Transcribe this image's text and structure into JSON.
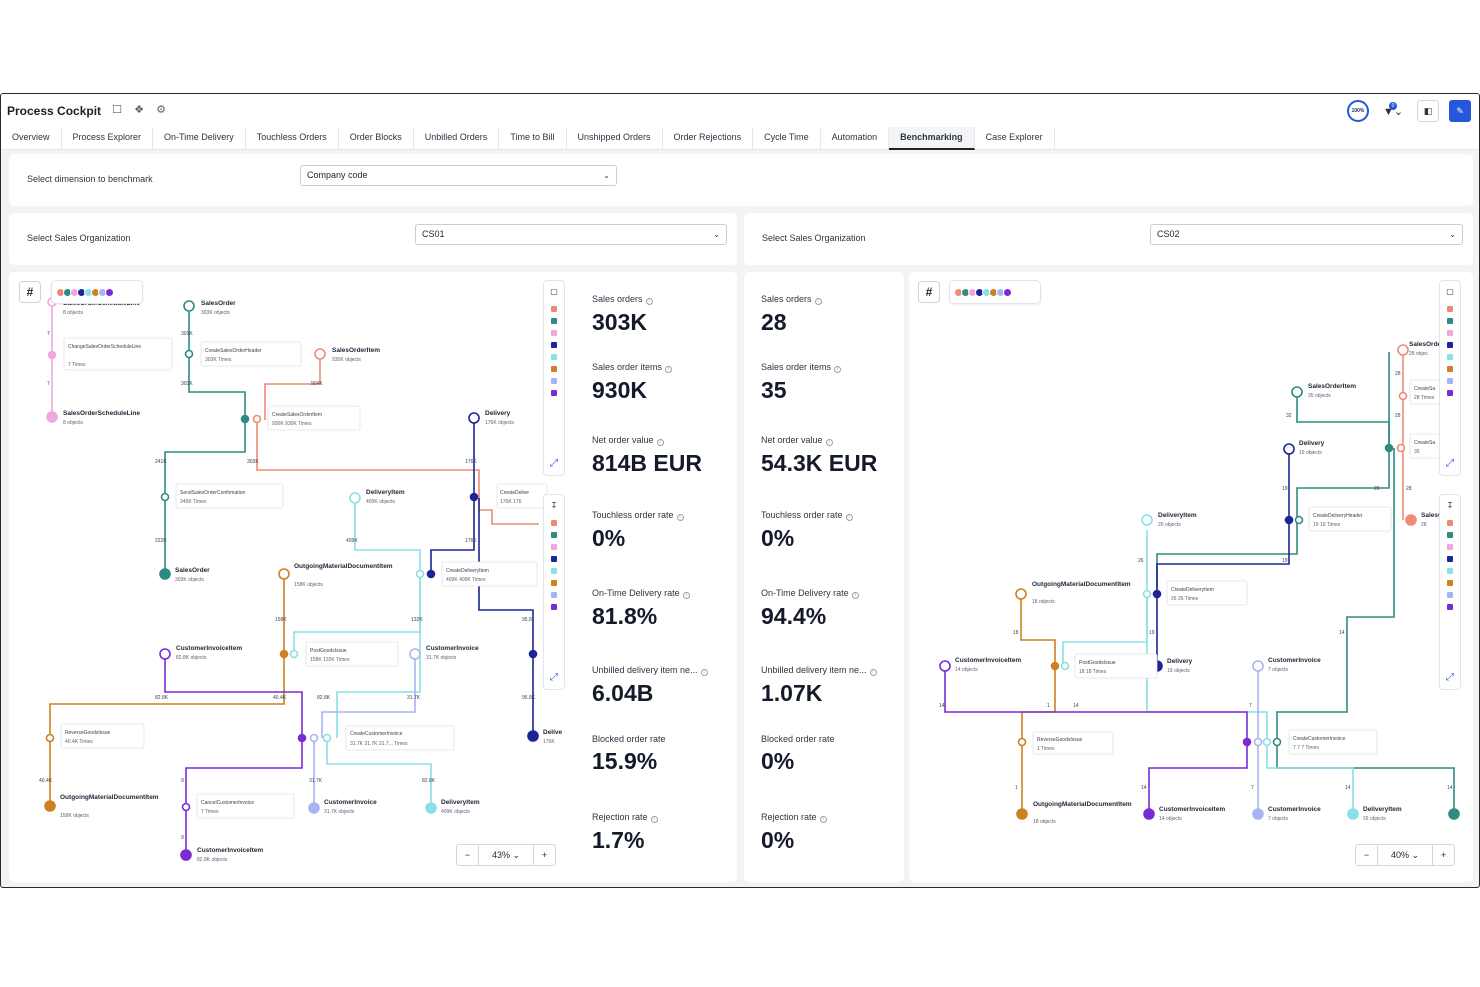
{
  "app": {
    "title": "Process Cockpit",
    "tabs": [
      "Overview",
      "Process Explorer",
      "On-Time Delivery",
      "Touchless Orders",
      "Order Blocks",
      "Unbilled Orders",
      "Time to Bill",
      "Unshipped Orders",
      "Order Rejections",
      "Cycle Time",
      "Automation",
      "Benchmarking",
      "Case Explorer"
    ],
    "active_tab": "Benchmarking",
    "completeness_badge": "100%",
    "filter_count": "0"
  },
  "dimension": {
    "label": "Select dimension to benchmark",
    "value": "Company code"
  },
  "left": {
    "org_label": "Select Sales Organization",
    "org_value": "CS01",
    "zoom": "43%",
    "kpis": [
      {
        "label": "Sales orders",
        "value": "303K"
      },
      {
        "label": "Sales order items",
        "value": "930K"
      },
      {
        "label": "Net order value",
        "value": "814B EUR"
      },
      {
        "label": "Touchless order rate",
        "value": "0%"
      },
      {
        "label": "On-Time Delivery rate",
        "value": "81.8%"
      },
      {
        "label": "Unbilled delivery item ne...",
        "value": "6.04B"
      },
      {
        "label": "Blocked order rate",
        "value": "15.9%"
      },
      {
        "label": "Rejection rate",
        "value": "1.7%"
      }
    ],
    "graph": {
      "nodes": [
        {
          "name": "SalesOrderScheduleLine",
          "sub": "8 objects"
        },
        {
          "name": "SalesOrder",
          "sub": "303K objects"
        },
        {
          "name": "ChangeSalesOrderScheduleLine",
          "sub": "7 Times"
        },
        {
          "name": "CreateSalesOrderHeader",
          "sub": "303K Times"
        },
        {
          "name": "SalesOrderItem",
          "sub": "930K objects"
        },
        {
          "name": "SalesOrderScheduleLine",
          "sub": "8 objects"
        },
        {
          "name": "CreateSalesOrderItem",
          "sub": "930K   930K Times"
        },
        {
          "name": "Delivery",
          "sub": "176K objects"
        },
        {
          "name": "SendSalesOrderConfirmation",
          "sub": "245K Times"
        },
        {
          "name": "DeliveryItem",
          "sub": "409K objects"
        },
        {
          "name": "CreateDelive",
          "sub": "176K  176"
        },
        {
          "name": "SalesOrder",
          "sub": "303K objects"
        },
        {
          "name": "OutgoingMaterialDocumentItem",
          "sub": "158K objects"
        },
        {
          "name": "CreateDeliveryItem",
          "sub": "409K   409K Times"
        },
        {
          "name": "CustomerInvoiceItem",
          "sub": "82.8K objects"
        },
        {
          "name": "PostGoodsIssue",
          "sub": "158K   132K Times"
        },
        {
          "name": "CustomerInvoice",
          "sub": "31.7K objects"
        },
        {
          "name": "ReverseGoodsIssue",
          "sub": "40.4K Times"
        },
        {
          "name": "CreateCustomerInvoice",
          "sub": "31.7K  31.7K  31.7...  Times"
        },
        {
          "name": "Delive",
          "sub": "176K"
        },
        {
          "name": "OutgoingMaterialDocumentItem",
          "sub": "158K objects"
        },
        {
          "name": "CancelCustomerInvoice",
          "sub": "7 Times"
        },
        {
          "name": "CustomerInvoice",
          "sub": "31.7K objects"
        },
        {
          "name": "DeliveryItem",
          "sub": "409K objects"
        },
        {
          "name": "CustomerInvoiceItem",
          "sub": "82.8K objects"
        }
      ],
      "edges": [
        "7",
        "7",
        "301K",
        "303K",
        "904K",
        "241K",
        "303K",
        "176K",
        "222K",
        "409K",
        "176K",
        "158K",
        "132K",
        "95.8",
        "82.8K",
        "40.4K",
        "82.8K",
        "31.7K",
        "95.8K",
        "40.4K",
        "9",
        "31.7K",
        "82.8K",
        "9"
      ]
    }
  },
  "right": {
    "org_label": "Select Sales Organization",
    "org_value": "CS02",
    "zoom": "40%",
    "kpis": [
      {
        "label": "Sales orders",
        "value": "28"
      },
      {
        "label": "Sales order items",
        "value": "35"
      },
      {
        "label": "Net order value",
        "value": "54.3K EUR"
      },
      {
        "label": "Touchless order rate",
        "value": "0%"
      },
      {
        "label": "On-Time Delivery rate",
        "value": "94.4%"
      },
      {
        "label": "Unbilled delivery item ne...",
        "value": "1.07K"
      },
      {
        "label": "Blocked order rate",
        "value": "0%"
      },
      {
        "label": "Rejection rate",
        "value": "0%"
      }
    ],
    "graph": {
      "nodes": [
        {
          "name": "SalesOrde",
          "sub": "28 objec"
        },
        {
          "name": "SalesOrderItem",
          "sub": "35 objects"
        },
        {
          "name": "CreateSa",
          "sub": "28 Times"
        },
        {
          "name": "Delivery",
          "sub": "19 objects"
        },
        {
          "name": "CreateSa",
          "sub": "35"
        },
        {
          "name": "CreateDeliveryHeader",
          "sub": "19   19 Times"
        },
        {
          "name": "SalesO",
          "sub": "28"
        },
        {
          "name": "DeliveryItem",
          "sub": "26 objects"
        },
        {
          "name": "OutgoingMaterialDocumentItem",
          "sub": "18 objects"
        },
        {
          "name": "CreateDeliveryItem",
          "sub": "26   26 Times"
        },
        {
          "name": "CustomerInvoiceItem",
          "sub": "14 objects"
        },
        {
          "name": "PostGoodsIssue",
          "sub": "18   18 Times"
        },
        {
          "name": "Delivery",
          "sub": "19 objects"
        },
        {
          "name": "CustomerInvoice",
          "sub": "7 objects"
        },
        {
          "name": "ReverseGoodsIssue",
          "sub": "1 Times"
        },
        {
          "name": "CreateCustomerInvoice",
          "sub": "7   7   7 Times"
        },
        {
          "name": "OutgoingMaterialDocumentItem",
          "sub": "18 objects"
        },
        {
          "name": "CustomerInvoiceItem",
          "sub": "14 objects"
        },
        {
          "name": "CustomerInvoice",
          "sub": "7 objects"
        },
        {
          "name": "DeliveryItem",
          "sub": "26 objects"
        }
      ],
      "edges": [
        "28",
        "32",
        "28",
        "19",
        "26",
        "28",
        "19",
        "26",
        "18",
        "19",
        "14",
        "14",
        "1",
        "14",
        "7",
        "1",
        "14",
        "7",
        "14",
        "14"
      ]
    }
  },
  "colors": {
    "teal": "#2e8b82",
    "salmon": "#ee8a76",
    "pink": "#f1a6de",
    "navy": "#1c2596",
    "cyan": "#8adfe8",
    "orange": "#cd8121",
    "lavender": "#a9b5f2",
    "purple": "#7a2bd6",
    "accent": "#2656d9"
  },
  "icons": {
    "bookmark": "bookmark-icon",
    "share": "share-icon",
    "settings": "gear-icon",
    "filter": "filter-icon",
    "panel": "panel-icon",
    "edit": "pencil-icon",
    "hash": "hash-icon",
    "expand": "expand-icon"
  }
}
